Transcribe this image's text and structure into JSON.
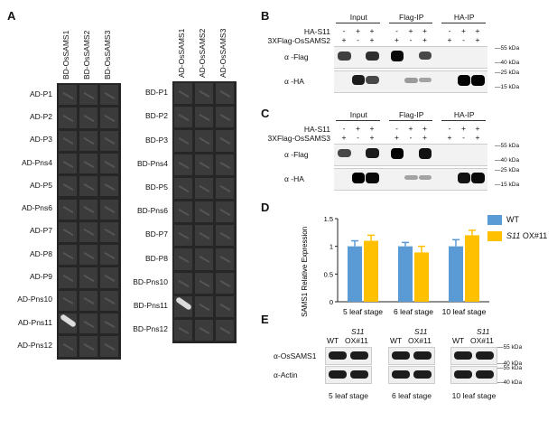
{
  "panel_labels": {
    "a": "A",
    "b": "B",
    "c": "C",
    "d": "D",
    "e": "E"
  },
  "panel_a": {
    "plate1": {
      "columns": [
        "BD-OsSAMS1",
        "BD-OsSAMS2",
        "BD-OsSAMS3"
      ],
      "rows": [
        "AD-P1",
        "AD-P2",
        "AD-P3",
        "AD-Pns4",
        "AD-P5",
        "AD-Pns6",
        "AD-P7",
        "AD-P8",
        "AD-P9",
        "AD-Pns10",
        "AD-Pns11",
        "AD-Pns12"
      ],
      "growth": [
        [
          10,
          0
        ]
      ]
    },
    "plate2": {
      "columns": [
        "AD-OsSAMS1",
        "AD-OsSAMS2",
        "AD-OsSAMS3"
      ],
      "rows": [
        "BD-P1",
        "BD-P2",
        "BD-P3",
        "BD-Pns4",
        "BD-P5",
        "BD-Pns6",
        "BD-P7",
        "BD-P8",
        "BD-Pns10",
        "BD-Pns11",
        "BD-Pns12"
      ],
      "growth": [
        [
          9,
          0
        ]
      ]
    }
  },
  "panel_b": {
    "groups": [
      "Input",
      "Flag-IP",
      "HA-IP"
    ],
    "row_labels": [
      "HA-S11",
      "3XFlag-OsSAMS2"
    ],
    "signs": [
      [
        "-",
        "+",
        "+",
        "-",
        "+",
        "+",
        "-",
        "+",
        "+"
      ],
      [
        "+",
        "-",
        "+",
        "+",
        "-",
        "+",
        "+",
        "-",
        "+"
      ]
    ],
    "blots": [
      {
        "label": "α -Flag",
        "markers": [
          "55 kDa",
          "40 kDa"
        ],
        "bands": [
          0.65,
          0,
          0.75,
          0.95,
          0,
          0.6,
          0,
          0,
          0
        ]
      },
      {
        "label": "α -HA",
        "markers": [
          "25 kDa",
          "15 kDa"
        ],
        "bands": [
          0,
          0.85,
          0.6,
          0,
          0.15,
          0.1,
          0,
          1.0,
          1.0
        ]
      }
    ]
  },
  "panel_c": {
    "groups": [
      "Input",
      "Flag-IP",
      "HA-IP"
    ],
    "row_labels": [
      "HA-S11",
      "3XFlag-OsSAMS3"
    ],
    "signs": [
      [
        "-",
        "+",
        "+",
        "-",
        "+",
        "+",
        "-",
        "+",
        "+"
      ],
      [
        "+",
        "-",
        "+",
        "+",
        "-",
        "+",
        "+",
        "-",
        "+"
      ]
    ],
    "blots": [
      {
        "label": "α -Flag",
        "markers": [
          "55 kDa",
          "40 kDa"
        ],
        "bands": [
          0.6,
          0,
          0.85,
          1.0,
          0,
          0.9,
          0,
          0,
          0
        ]
      },
      {
        "label": "α -HA",
        "markers": [
          "25 kDa",
          "15 kDa"
        ],
        "bands": [
          0,
          1.0,
          0.95,
          0,
          0.1,
          0.1,
          0,
          0.9,
          0.95
        ]
      }
    ]
  },
  "chart_data": {
    "type": "bar",
    "categories": [
      "5 leaf stage",
      "6 leaf stage",
      "10 leaf stage"
    ],
    "series": [
      {
        "name": "WT",
        "values": [
          1.0,
          1.0,
          1.0
        ],
        "errors": [
          0.1,
          0.07,
          0.12
        ],
        "color": "#5b9bd5"
      },
      {
        "name": "S11 OX#11",
        "values": [
          1.1,
          0.89,
          1.2
        ],
        "errors": [
          0.1,
          0.11,
          0.09
        ],
        "color": "#ffc000"
      }
    ],
    "ylabel": "OsSAMS1 Relative Expression",
    "ylim": [
      0,
      1.5
    ],
    "yticks": [
      0,
      0.5,
      1.0,
      1.5
    ],
    "legend": "top-right",
    "grid": false
  },
  "legend_labels": {
    "wt": "WT",
    "ox_italic": "S11",
    "ox_rest": " OX#11"
  },
  "panel_e": {
    "groups": [
      {
        "wt": "WT",
        "ox_top": "S11",
        "ox_bottom": "OX#11",
        "stage": "5 leaf stage"
      },
      {
        "wt": "WT",
        "ox_top": "S11",
        "ox_bottom": "OX#11",
        "stage": "6 leaf stage"
      },
      {
        "wt": "WT",
        "ox_top": "S11",
        "ox_bottom": "OX#11",
        "stage": "10 leaf stage"
      }
    ],
    "rows": [
      "α-OsSAMS1",
      "α-Actin"
    ],
    "markers": [
      "55 kDa",
      "40 kDa",
      "55 kDa",
      "40 kDa"
    ]
  }
}
